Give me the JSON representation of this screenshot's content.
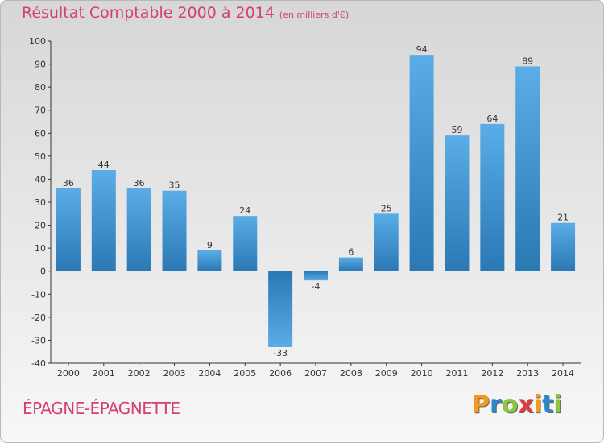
{
  "chart_data": {
    "type": "bar",
    "title": "Résultat Comptable 2000 à 2014",
    "subtitle": "(en milliers d'€)",
    "categories": [
      "2000",
      "2001",
      "2002",
      "2003",
      "2004",
      "2005",
      "2006",
      "2007",
      "2008",
      "2009",
      "2010",
      "2011",
      "2012",
      "2013",
      "2014"
    ],
    "values": [
      36,
      44,
      36,
      35,
      9,
      24,
      -33,
      -4,
      6,
      25,
      94,
      59,
      64,
      89,
      21
    ],
    "ylim": [
      -40,
      100
    ],
    "yticks": [
      100,
      90,
      80,
      70,
      60,
      50,
      40,
      30,
      20,
      10,
      0,
      -10,
      -20,
      -30,
      -40
    ],
    "xlabel": "",
    "ylabel": "",
    "grid": false,
    "legend": "none",
    "colors": {
      "bar_light": "#5aade6",
      "bar_dark": "#2a78b4"
    }
  },
  "commune": "ÉPAGNE-ÉPAGNETTE",
  "logo": {
    "letters": [
      "P",
      "r",
      "o",
      "x",
      "i",
      "t",
      "i"
    ],
    "colors": [
      "#f19a1b",
      "#2e86c8",
      "#8cc63e",
      "#e23b3b",
      "#f19a1b",
      "#2e86c8",
      "#8cc63e"
    ]
  },
  "colors": {
    "accent": "#d4416d",
    "axis": "#333333"
  }
}
